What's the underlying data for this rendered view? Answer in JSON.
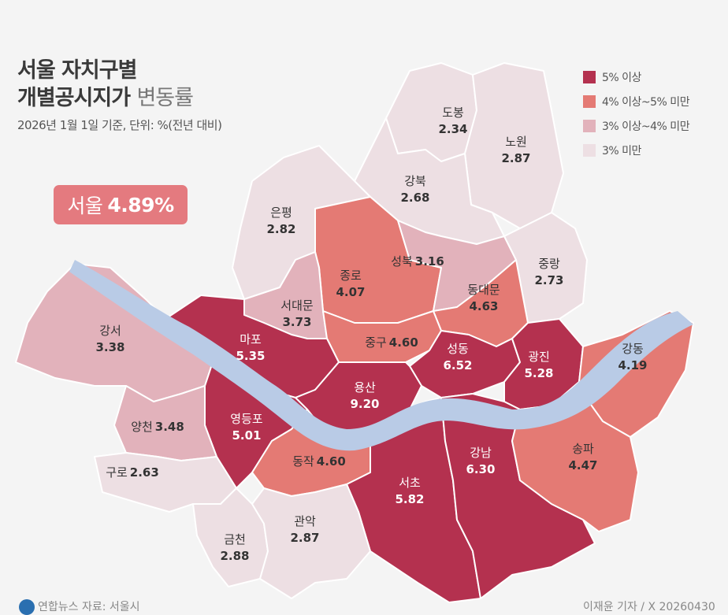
{
  "title": {
    "line1": "서울 자치구별",
    "line2_bold": "개별공시지가",
    "line2_light": "변동률"
  },
  "subtitle": "2026년 1월 1일 기준, 단위: %(전년 대비)",
  "summary": {
    "region": "서울",
    "value": "4.89%"
  },
  "colors": {
    "over5": "#b4314f",
    "4to5": "#e47a74",
    "3to4": "#e2b2bb",
    "under3": "#eddfe3",
    "river": "#b9cbe6",
    "border": "#ffffff"
  },
  "legend": [
    {
      "label": "5% 이상",
      "color": "#b4314f"
    },
    {
      "label": "4% 이상~5% 미만",
      "color": "#e47a74"
    },
    {
      "label": "3% 이상~4% 미만",
      "color": "#e2b2bb"
    },
    {
      "label": "3% 미만",
      "color": "#eddfe3"
    }
  ],
  "districts": [
    {
      "name": "도봉",
      "value": "2.34",
      "class": "under3"
    },
    {
      "name": "노원",
      "value": "2.87",
      "class": "under3"
    },
    {
      "name": "강북",
      "value": "2.68",
      "class": "under3"
    },
    {
      "name": "은평",
      "value": "2.82",
      "class": "under3"
    },
    {
      "name": "종로",
      "value": "4.07",
      "class": "4to5"
    },
    {
      "name": "성북",
      "value": "3.16",
      "class": "3to4"
    },
    {
      "name": "중랑",
      "value": "2.73",
      "class": "under3"
    },
    {
      "name": "서대문",
      "value": "3.73",
      "class": "3to4"
    },
    {
      "name": "동대문",
      "value": "4.63",
      "class": "4to5"
    },
    {
      "name": "중구",
      "value": "4.60",
      "class": "4to5"
    },
    {
      "name": "마포",
      "value": "5.35",
      "class": "over5"
    },
    {
      "name": "성동",
      "value": "6.52",
      "class": "over5"
    },
    {
      "name": "광진",
      "value": "5.28",
      "class": "over5"
    },
    {
      "name": "강동",
      "value": "4.19",
      "class": "4to5"
    },
    {
      "name": "강서",
      "value": "3.38",
      "class": "3to4"
    },
    {
      "name": "용산",
      "value": "9.20",
      "class": "over5"
    },
    {
      "name": "영등포",
      "value": "5.01",
      "class": "over5"
    },
    {
      "name": "양천",
      "value": "3.48",
      "class": "3to4"
    },
    {
      "name": "구로",
      "value": "2.63",
      "class": "under3"
    },
    {
      "name": "동작",
      "value": "4.60",
      "class": "4to5"
    },
    {
      "name": "서초",
      "value": "5.82",
      "class": "over5"
    },
    {
      "name": "강남",
      "value": "6.30",
      "class": "over5"
    },
    {
      "name": "송파",
      "value": "4.47",
      "class": "4to5"
    },
    {
      "name": "금천",
      "value": "2.88",
      "class": "under3"
    },
    {
      "name": "관악",
      "value": "2.87",
      "class": "under3"
    }
  ],
  "footer": {
    "left": "연합뉴스 자료: 서울시",
    "right": "이재윤 기자 / X 20260430"
  }
}
